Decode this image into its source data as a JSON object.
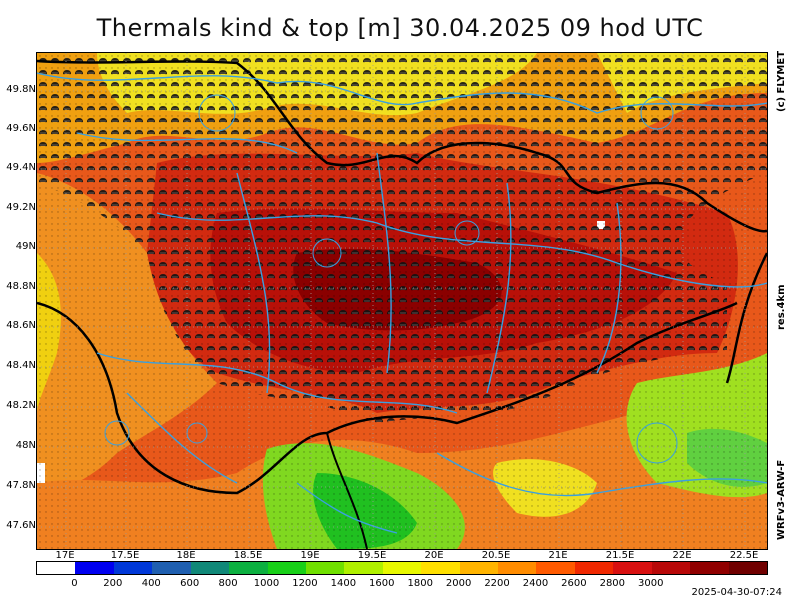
{
  "title": "Thermals kind & top [m]  30.04.2025 09 hod UTC",
  "lat_labels": [
    "49.8N",
    "49.6N",
    "49.4N",
    "49.2N",
    "49N",
    "48.8N",
    "48.6N",
    "48.4N",
    "48.2N",
    "48N",
    "47.8N",
    "47.6N"
  ],
  "lon_labels": [
    "17E",
    "17.5E",
    "18E",
    "18.5E",
    "19E",
    "19.5E",
    "20E",
    "20.5E",
    "21E",
    "21.5E",
    "22E",
    "22.5E"
  ],
  "side_labels": {
    "copyright": "(c) FLYMET",
    "resolution": "res.4km",
    "model": "WRFv3-ARW-F"
  },
  "colorbar": {
    "colors": [
      "#ffffff",
      "#0000f0",
      "#0038d8",
      "#1f5fb0",
      "#108878",
      "#0cb040",
      "#18d018",
      "#70e000",
      "#b0f000",
      "#e8f800",
      "#ffe000",
      "#ffb400",
      "#ff8c00",
      "#ff5a00",
      "#f02800",
      "#d81010",
      "#b80808",
      "#900000",
      "#700000"
    ],
    "labels": [
      "0",
      "200",
      "400",
      "600",
      "800",
      "1000",
      "1200",
      "1400",
      "1600",
      "1800",
      "2000",
      "2200",
      "2400",
      "2600",
      "2800",
      "3000"
    ]
  },
  "timestamp": "2025-04-30-07:24"
}
